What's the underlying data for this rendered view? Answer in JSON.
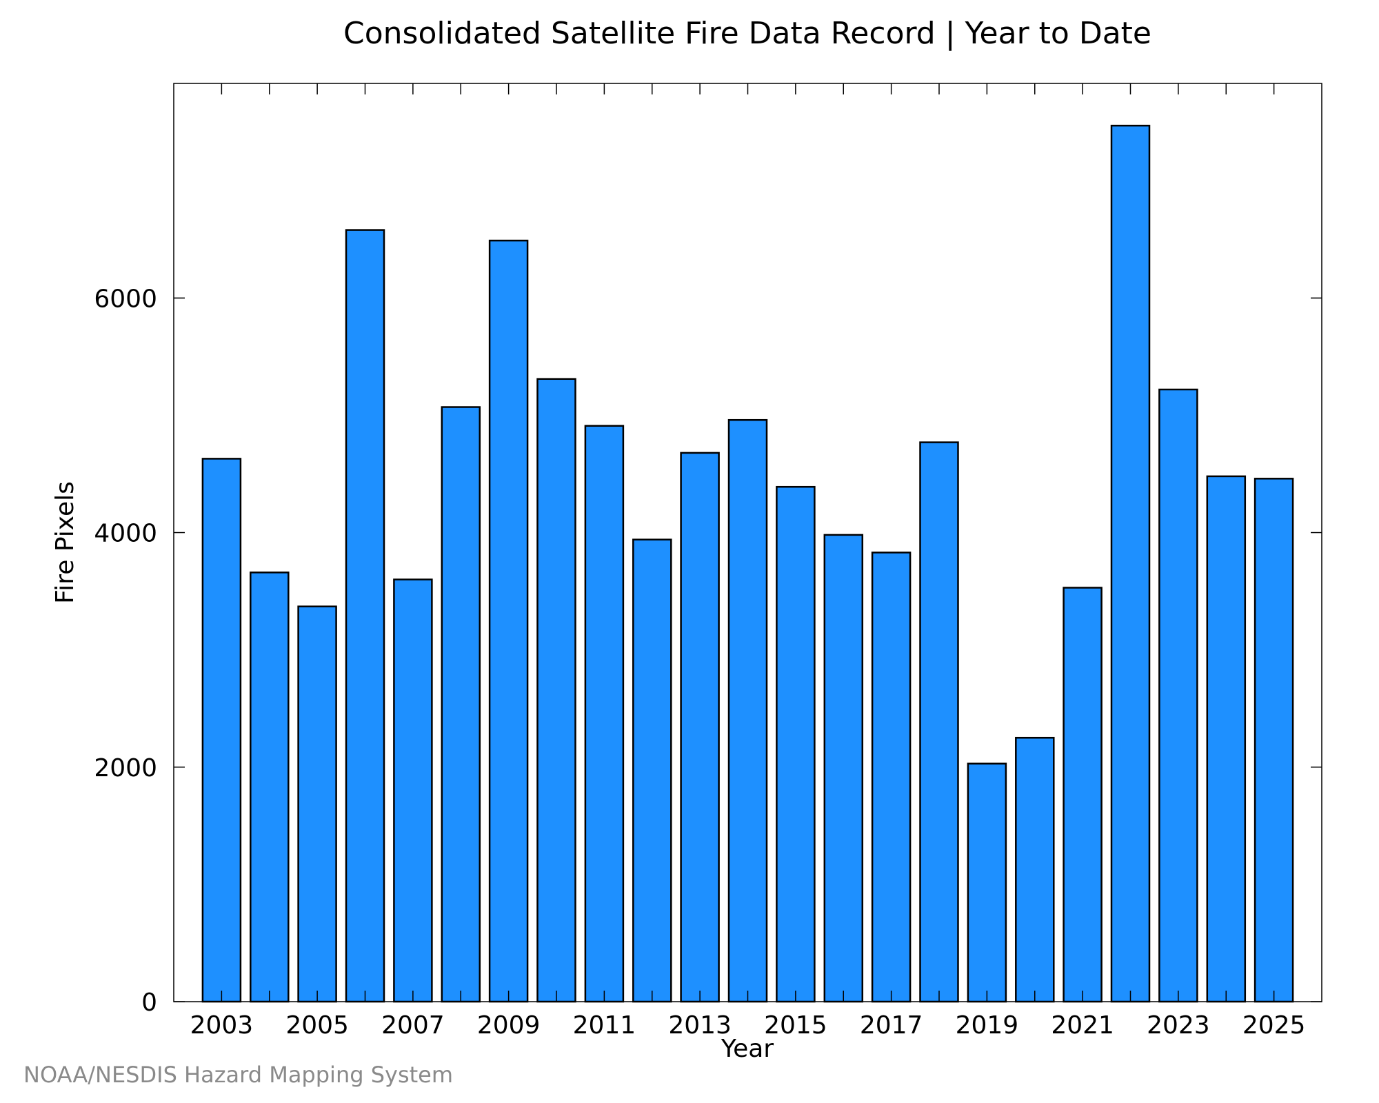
{
  "chart_data": {
    "type": "bar",
    "title": "Consolidated Satellite Fire Data Record | Year to Date",
    "xlabel": "Year",
    "ylabel": "Fire Pixels",
    "categories": [
      "2003",
      "2004",
      "2005",
      "2006",
      "2007",
      "2008",
      "2009",
      "2010",
      "2011",
      "2012",
      "2013",
      "2014",
      "2015",
      "2016",
      "2017",
      "2018",
      "2019",
      "2020",
      "2021",
      "2022",
      "2023",
      "2024",
      "2025"
    ],
    "x_tick_labels": [
      "2003",
      "2005",
      "2007",
      "2009",
      "2011",
      "2013",
      "2015",
      "2017",
      "2019",
      "2021",
      "2023",
      "2025"
    ],
    "y_ticks": [
      0,
      2000,
      4000,
      6000
    ],
    "values": [
      4630,
      3660,
      3370,
      6580,
      3600,
      5070,
      6490,
      5310,
      4910,
      3940,
      4680,
      4960,
      4390,
      3980,
      3830,
      4770,
      2030,
      2250,
      3530,
      7470,
      5220,
      4480,
      4460
    ],
    "ylim": [
      0,
      7830
    ],
    "xlim": [
      2002.0,
      2026.0
    ],
    "grid": false,
    "bar_color": "#1e90ff",
    "bar_edge_color": "#000000"
  },
  "credit": "NOAA/NESDIS Hazard Mapping System"
}
